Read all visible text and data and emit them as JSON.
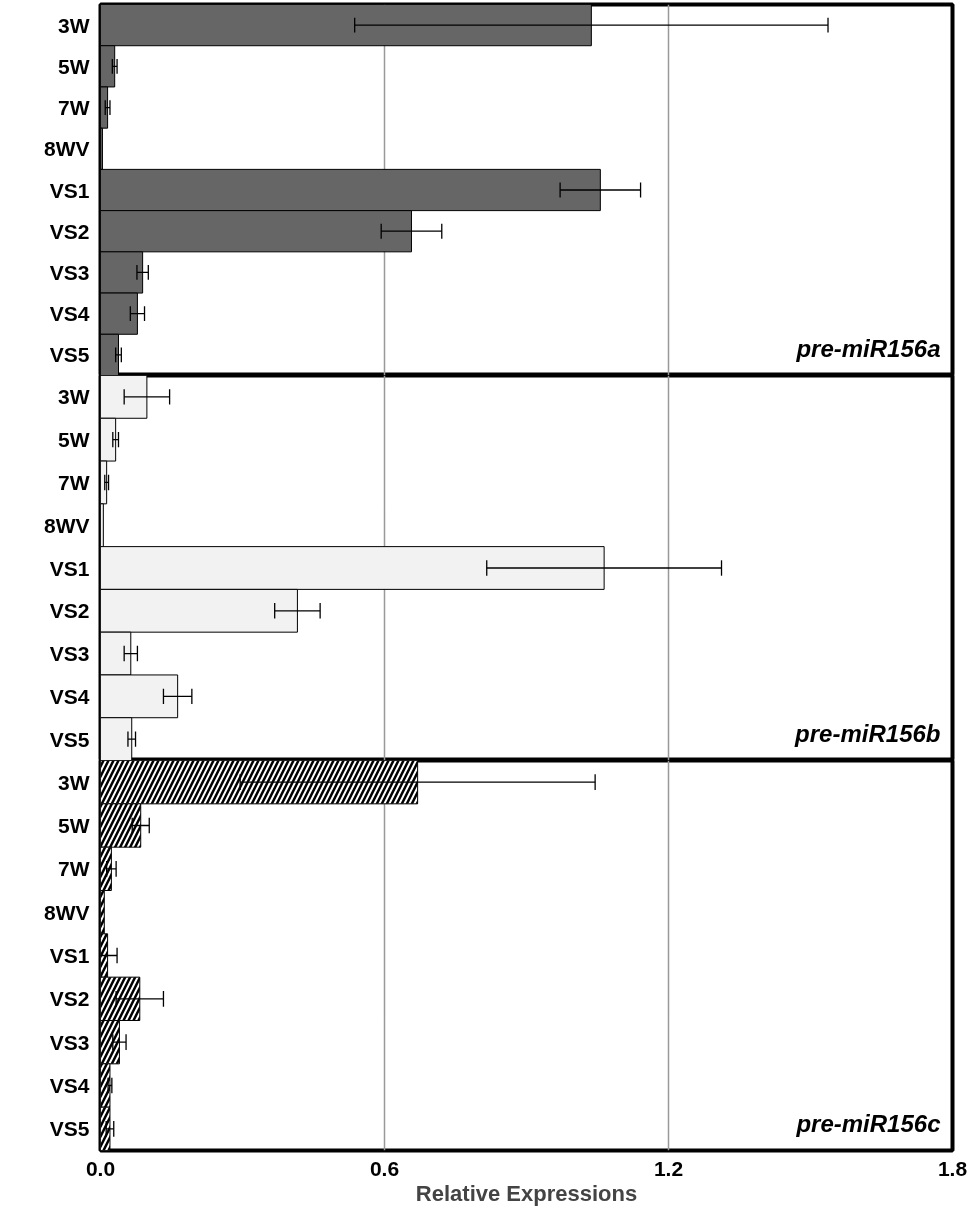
{
  "chart_data": [
    {
      "type": "bar",
      "orientation": "horizontal",
      "categories": [
        "3W",
        "5W",
        "7W",
        "8WV",
        "VS1",
        "VS2",
        "VS3",
        "VS4",
        "VS5"
      ],
      "values": [
        1.037,
        0.03,
        0.015,
        0.004,
        1.056,
        0.657,
        0.089,
        0.078,
        0.038
      ],
      "errors": [
        0.5,
        0.005,
        0.005,
        null,
        0.085,
        0.064,
        0.012,
        0.015,
        0.006
      ],
      "color": "#666666",
      "xlim": [
        0,
        1.8
      ],
      "xticks": [
        0.6,
        1.2
      ],
      "grid": "x",
      "tick_labels": "y",
      "annotations": [
        "pre-miR156a"
      ]
    },
    {
      "type": "bar",
      "orientation": "horizontal",
      "categories": [
        "3W",
        "5W",
        "7W",
        "8WV",
        "VS1",
        "VS2",
        "VS3",
        "VS4",
        "VS5"
      ],
      "values": [
        0.098,
        0.032,
        0.013,
        0.006,
        1.064,
        0.416,
        0.064,
        0.163,
        0.066
      ],
      "errors": [
        0.048,
        0.006,
        0.004,
        null,
        0.248,
        0.048,
        0.014,
        0.03,
        0.008
      ],
      "color": "#f2f2f2",
      "xlim": [
        0,
        1.8
      ],
      "xticks": [
        0.6,
        1.2
      ],
      "grid": "x",
      "tick_labels": "y",
      "annotations": [
        "pre-miR156b"
      ]
    },
    {
      "type": "bar",
      "orientation": "horizontal",
      "categories": [
        "3W",
        "5W",
        "7W",
        "8WV",
        "VS1",
        "VS2",
        "VS3",
        "VS4",
        "VS5"
      ],
      "values": [
        0.67,
        0.085,
        0.023,
        0.008,
        0.015,
        0.083,
        0.04,
        0.02,
        0.02
      ],
      "errors": [
        0.375,
        0.018,
        0.01,
        null,
        0.02,
        0.05,
        0.014,
        0.004,
        0.008
      ],
      "color": "#ffffff",
      "xlim": [
        0,
        1.8
      ],
      "xticks": [
        {
          "value": 0,
          "label": "0.0"
        },
        0.6,
        1.2,
        1.8
      ],
      "grid": "x",
      "xlabel": "Relative Expressions",
      "annotations": [
        "pre-miR156c"
      ]
    }
  ]
}
